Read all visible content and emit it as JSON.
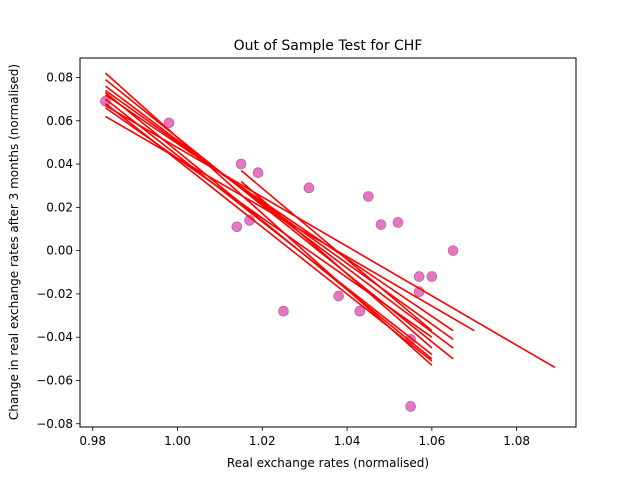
{
  "chart_data": {
    "type": "scatter",
    "title": "Out of Sample Test for CHF",
    "xlabel": "Real exchange rates (normalised)",
    "ylabel": "Change in real exchange rates after 3 months (normalised)",
    "xlim": [
      0.977,
      1.094
    ],
    "ylim": [
      -0.0815,
      0.089
    ],
    "xticks": [
      "0.98",
      "1.00",
      "1.02",
      "1.04",
      "1.06",
      "1.08"
    ],
    "yticks": [
      "−0.08",
      "−0.06",
      "−0.04",
      "−0.02",
      "0.00",
      "0.02",
      "0.04",
      "0.06",
      "0.08"
    ],
    "grid": false,
    "colors": {
      "points": "#e377c2",
      "lines": "#ff0000"
    },
    "points": {
      "x": [
        0.983,
        0.998,
        1.015,
        1.019,
        1.031,
        1.045,
        1.014,
        1.017,
        1.048,
        1.052,
        1.065,
        1.057,
        1.06,
        1.057,
        1.038,
        1.043,
        1.025,
        1.055,
        1.055
      ],
      "y": [
        0.069,
        0.059,
        0.04,
        0.036,
        0.029,
        0.025,
        0.011,
        0.014,
        0.012,
        0.013,
        0.0,
        -0.012,
        -0.012,
        -0.019,
        -0.021,
        -0.028,
        -0.028,
        -0.041,
        -0.072
      ]
    },
    "fit_lines": [
      {
        "x": [
          0.983,
          1.089
        ],
        "y": [
          0.067,
          -0.054
        ]
      },
      {
        "x": [
          0.983,
          1.07
        ],
        "y": [
          0.062,
          -0.037
        ]
      },
      {
        "x": [
          0.983,
          1.065
        ],
        "y": [
          0.072,
          -0.037
        ]
      },
      {
        "x": [
          0.983,
          1.065
        ],
        "y": [
          0.074,
          -0.041
        ]
      },
      {
        "x": [
          0.983,
          1.065
        ],
        "y": [
          0.076,
          -0.045
        ]
      },
      {
        "x": [
          0.983,
          1.065
        ],
        "y": [
          0.079,
          -0.05
        ]
      },
      {
        "x": [
          0.983,
          1.06
        ],
        "y": [
          0.082,
          -0.053
        ]
      },
      {
        "x": [
          0.983,
          1.06
        ],
        "y": [
          0.07,
          -0.048
        ]
      },
      {
        "x": [
          0.983,
          1.06
        ],
        "y": [
          0.068,
          -0.051
        ]
      },
      {
        "x": [
          0.983,
          1.06
        ],
        "y": [
          0.073,
          -0.05
        ]
      },
      {
        "x": [
          0.983,
          1.06
        ],
        "y": [
          0.066,
          -0.04
        ]
      },
      {
        "x": [
          1.015,
          1.06
        ],
        "y": [
          0.037,
          -0.037
        ]
      },
      {
        "x": [
          1.015,
          1.06
        ],
        "y": [
          0.032,
          -0.045
        ]
      }
    ]
  }
}
